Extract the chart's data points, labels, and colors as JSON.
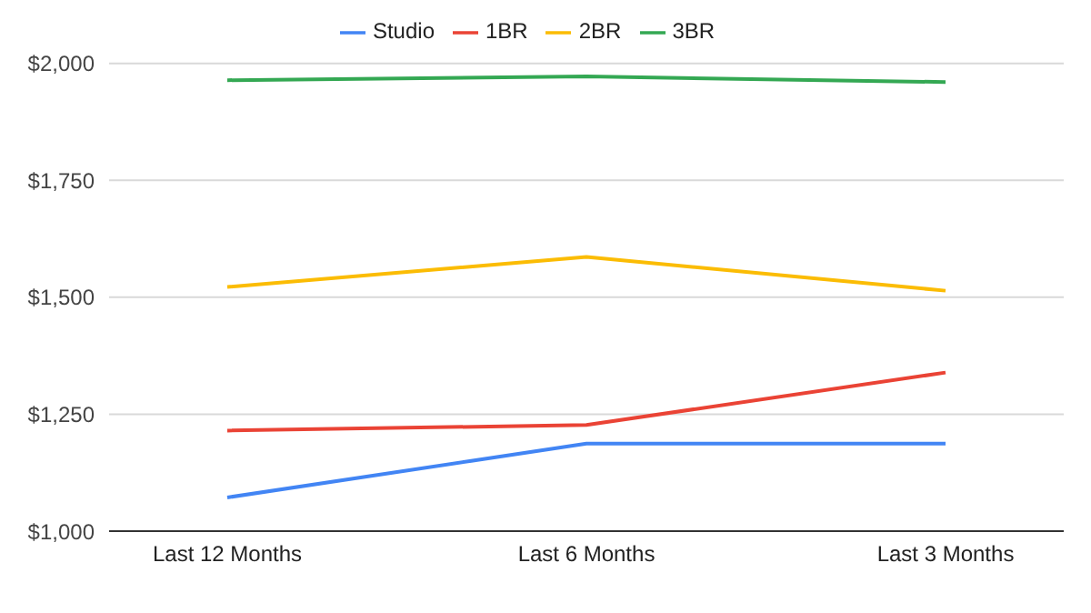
{
  "chart_data": {
    "type": "line",
    "categories": [
      "Last 12 Months",
      "Last 6 Months",
      "Last 3 Months"
    ],
    "series": [
      {
        "name": "Studio",
        "color": "#4285f4",
        "values": [
          1072,
          1187,
          1187
        ]
      },
      {
        "name": "1BR",
        "color": "#ea4335",
        "values": [
          1215,
          1227,
          1339
        ]
      },
      {
        "name": "2BR",
        "color": "#fbbc04",
        "values": [
          1522,
          1586,
          1514
        ]
      },
      {
        "name": "3BR",
        "color": "#34a853",
        "values": [
          1964,
          1972,
          1960
        ]
      }
    ],
    "ylim": [
      1000,
      2000
    ],
    "yticks": [
      {
        "value": 1000,
        "label": "$1,000"
      },
      {
        "value": 1250,
        "label": "$1,250"
      },
      {
        "value": 1500,
        "label": "$1,500"
      },
      {
        "value": 1750,
        "label": "$1,750"
      },
      {
        "value": 2000,
        "label": "$2,000"
      }
    ],
    "grid": "y",
    "legend": "top",
    "marker": "none",
    "line_style": "solid"
  }
}
